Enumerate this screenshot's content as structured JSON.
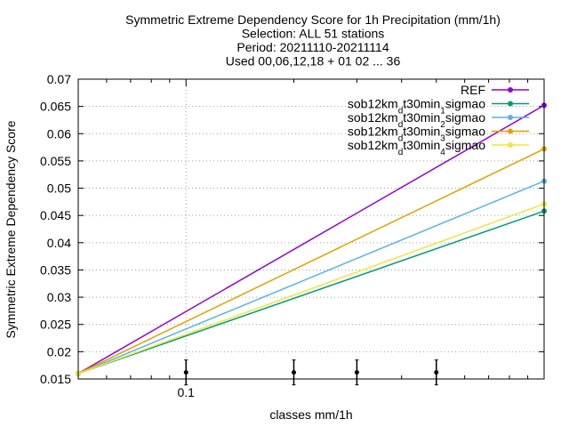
{
  "chart_data": {
    "type": "line",
    "title_lines": [
      "Symmetric Extreme Dependency Score  for 1h Precipitation (mm/1h)",
      "Selection: ALL     51 stations",
      "Period: 20211110-20211114",
      "Used 00,06,12,18 + 01 02 ... 36"
    ],
    "xlabel": "classes mm/1h",
    "ylabel": "Symmetric Extreme Dependency Score",
    "x_scale": "log",
    "x_ticks": [
      0.1
    ],
    "x_tick_labels": [
      "0.1"
    ],
    "ylim": [
      0.015,
      0.07
    ],
    "y_ticks": [
      0.015,
      0.02,
      0.025,
      0.03,
      0.035,
      0.04,
      0.045,
      0.05,
      0.055,
      0.06,
      0.065,
      0.07
    ],
    "y_tick_labels": [
      "0.015",
      "0.02",
      "0.025",
      "0.03",
      "0.035",
      "0.04",
      "0.045",
      "0.05",
      "0.055",
      "0.06",
      "0.065",
      "0.07"
    ],
    "grid": true,
    "legend_position": "top-right",
    "error_bar_x": [
      0.1,
      0.2,
      0.3,
      0.5
    ],
    "error_bar_y": 0.0162,
    "series": [
      {
        "name": "REF",
        "name_parts": [
          [
            "REF",
            ""
          ]
        ],
        "color": "#9400d3",
        "x": [
          0.05,
          1.0
        ],
        "values": [
          0.016,
          0.0652
        ]
      },
      {
        "name": "sob12km_dt30min_1sigmao",
        "name_parts": [
          [
            "sob12km",
            ""
          ],
          [
            "d",
            "sub"
          ],
          [
            "t30min",
            ""
          ],
          [
            "1",
            "sub"
          ],
          [
            "sigmao",
            ""
          ]
        ],
        "color": "#009e73",
        "x": [
          0.05,
          1.0
        ],
        "values": [
          0.016,
          0.0458
        ]
      },
      {
        "name": "sob12km_dt30min_2sigmao",
        "name_parts": [
          [
            "sob12km",
            ""
          ],
          [
            "d",
            "sub"
          ],
          [
            "t30min",
            ""
          ],
          [
            "2",
            "sub"
          ],
          [
            "sigmao",
            ""
          ]
        ],
        "color": "#56b4e9",
        "x": [
          0.05,
          1.0
        ],
        "values": [
          0.016,
          0.0513
        ]
      },
      {
        "name": "sob12km_dt30min_3sigmao",
        "name_parts": [
          [
            "sob12km",
            ""
          ],
          [
            "d",
            "sub"
          ],
          [
            "t30min",
            ""
          ],
          [
            "3",
            "sub"
          ],
          [
            "sigmao",
            ""
          ]
        ],
        "color": "#e69f00",
        "x": [
          0.05,
          1.0
        ],
        "values": [
          0.016,
          0.0572
        ]
      },
      {
        "name": "sob12km_dt30min_4sigmao",
        "name_parts": [
          [
            "sob12km",
            ""
          ],
          [
            "d",
            "sub"
          ],
          [
            "t30min",
            ""
          ],
          [
            "4",
            "sub"
          ],
          [
            "sigmao",
            ""
          ]
        ],
        "color": "#f0e442",
        "x": [
          0.05,
          1.0
        ],
        "values": [
          0.016,
          0.0471
        ]
      }
    ]
  }
}
